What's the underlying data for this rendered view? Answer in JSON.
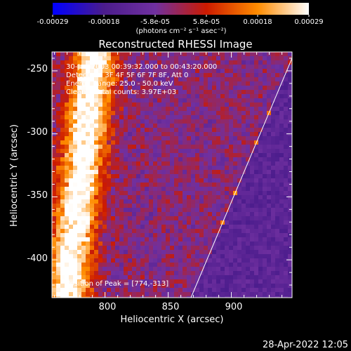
{
  "chart_data": {
    "type": "heatmap",
    "title": "Reconstructed RHESSI Image",
    "xlabel": "Heliocentric X (arcsec)",
    "ylabel": "Heliocentric Y (arcsec)",
    "xlim": [
      758,
      948
    ],
    "ylim": [
      -430,
      -235
    ],
    "x_ticks": [
      800,
      850,
      900
    ],
    "y_ticks": [
      -250,
      -300,
      -350,
      -400
    ],
    "annotations": [
      "30-Jan-2003 00:39:32.000 to 00:43:20.000",
      "Detectors: 3F 4F 5F 6F 7F 8F, Att 0",
      "Energy Range: 25.0 - 50.0 keV",
      "Clean    Total counts: 3.97E+03",
      "Position of Peak = [774,-313]"
    ],
    "colorbar": {
      "ticks": [
        "-0.00029",
        "-0.00018",
        "-5.8e-05",
        "5.8e-05",
        "0.00018",
        "0.00029"
      ],
      "unit_label": "(photons cm⁻² s⁻¹ asec⁻²)",
      "range": [
        -0.00029,
        0.00029
      ]
    },
    "colors": {
      "colorbar_stops": [
        "#0000ff",
        "#4b1c8c",
        "#7030a0",
        "#cc1a00",
        "#ff8c00",
        "#ffffff"
      ]
    },
    "limb_line": {
      "from": [
        868,
        -430
      ],
      "to": [
        948,
        -240
      ]
    },
    "peak": {
      "x": 774,
      "y": -313
    }
  },
  "footer": {
    "timestamp": "28-Apr-2022 12:05"
  }
}
